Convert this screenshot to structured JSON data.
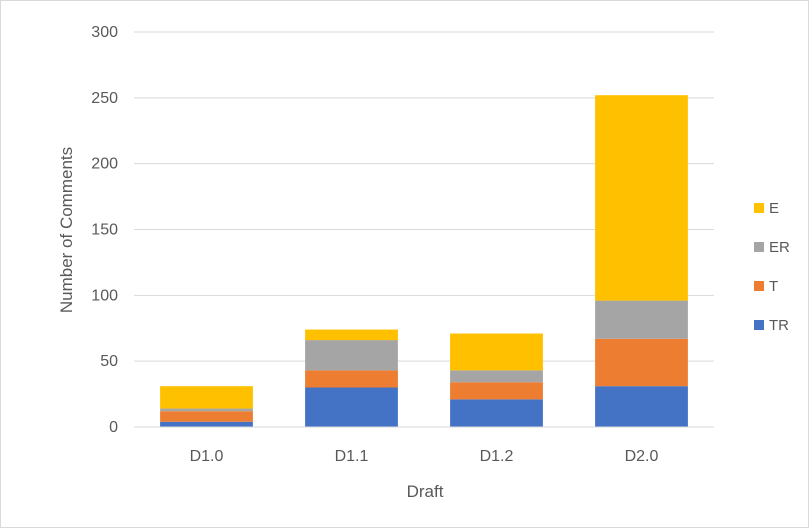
{
  "chart_data": {
    "type": "bar",
    "stacked": true,
    "categories": [
      "D1.0",
      "D1.1",
      "D1.2",
      "D2.0"
    ],
    "series": [
      {
        "name": "TR",
        "color": "#4472c4",
        "values": [
          4,
          30,
          21,
          31
        ]
      },
      {
        "name": "T",
        "color": "#ed7d31",
        "values": [
          8,
          13,
          13,
          36
        ]
      },
      {
        "name": "ER",
        "color": "#a5a5a5",
        "values": [
          2,
          23,
          9,
          29
        ]
      },
      {
        "name": "E",
        "color": "#ffc000",
        "values": [
          17,
          8,
          28,
          156
        ]
      }
    ],
    "xlabel": "Draft",
    "ylabel": "Number of Comments",
    "ylim": [
      0,
      300
    ],
    "yticks": [
      "0",
      "50",
      "100",
      "150",
      "200",
      "250",
      "300"
    ],
    "grid": true,
    "legend_position": "right",
    "legend_order": [
      "E",
      "ER",
      "T",
      "TR"
    ]
  }
}
